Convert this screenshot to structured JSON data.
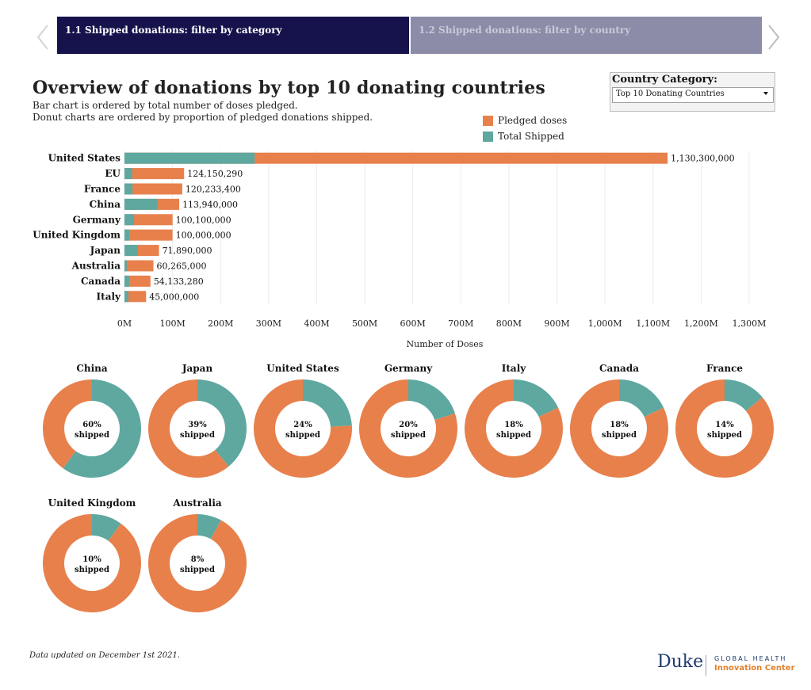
{
  "story_nav": {
    "tabs": [
      {
        "label": "1.1 Shipped donations: filter by category",
        "active": true
      },
      {
        "label": "1.2 Shipped donations: filter by country",
        "active": false
      }
    ],
    "prev_icon": "chevron-left-icon",
    "next_icon": "chevron-right-icon"
  },
  "header": {
    "title": "Overview of donations by top 10 donating countries",
    "subtitle_lines": [
      "Bar chart is ordered by total number of doses pledged.",
      "Donut charts are ordered by proportion of pledged donations shipped."
    ]
  },
  "filter": {
    "title": "Country Category:",
    "selected": "Top 10 Donating Countries"
  },
  "legend": [
    {
      "label": "Pledged doses",
      "color": "#e8804c"
    },
    {
      "label": "Total Shipped",
      "color": "#5ea8a0"
    }
  ],
  "colors": {
    "pledged": "#e8804c",
    "shipped": "#5ea8a0"
  },
  "chart_data": [
    {
      "type": "bar",
      "orientation": "horizontal",
      "stacked": "overlay",
      "categories": [
        "United States",
        "EU",
        "France",
        "China",
        "Germany",
        "United Kingdom",
        "Japan",
        "Australia",
        "Canada",
        "Italy"
      ],
      "series": [
        {
          "name": "Pledged doses",
          "values": [
            1130300000,
            124150290,
            120233400,
            113940000,
            100100000,
            100000000,
            71890000,
            60265000,
            54133280,
            45000000
          ]
        },
        {
          "name": "Total Shipped",
          "values": [
            271000000,
            16000000,
            16800000,
            68400000,
            20000000,
            10000000,
            28000000,
            4800000,
            9700000,
            8100000
          ]
        }
      ],
      "value_labels": [
        "1,130,300,000",
        "124,150,290",
        "120,233,400",
        "113,940,000",
        "100,100,000",
        "100,000,000",
        "71,890,000",
        "60,265,000",
        "54,133,280",
        "45,000,000"
      ],
      "xlabel": "Number of Doses",
      "xticks": [
        "0M",
        "100M",
        "200M",
        "300M",
        "400M",
        "500M",
        "600M",
        "700M",
        "800M",
        "900M",
        "1,000M",
        "1,100M",
        "1,200M",
        "1,300M"
      ],
      "xlim": [
        0,
        1300000000
      ],
      "grid": true
    },
    {
      "type": "pie",
      "variant": "donut",
      "items": [
        {
          "country": "China",
          "shipped_pct": 60,
          "label": "60%",
          "sub": "shipped"
        },
        {
          "country": "Japan",
          "shipped_pct": 39,
          "label": "39%",
          "sub": "shipped"
        },
        {
          "country": "United States",
          "shipped_pct": 24,
          "label": "24%",
          "sub": "shipped"
        },
        {
          "country": "Germany",
          "shipped_pct": 20,
          "label": "20%",
          "sub": "shipped"
        },
        {
          "country": "Italy",
          "shipped_pct": 18,
          "label": "18%",
          "sub": "shipped"
        },
        {
          "country": "Canada",
          "shipped_pct": 18,
          "label": "18%",
          "sub": "shipped"
        },
        {
          "country": "France",
          "shipped_pct": 14,
          "label": "14%",
          "sub": "shipped"
        },
        {
          "country": "United Kingdom",
          "shipped_pct": 10,
          "label": "10%",
          "sub": "shipped"
        },
        {
          "country": "Australia",
          "shipped_pct": 8,
          "label": "8%",
          "sub": "shipped"
        }
      ]
    }
  ],
  "footer": {
    "note": "Data updated on December 1st 2021.",
    "logo": {
      "name": "Duke",
      "line1": "GLOBAL HEALTH",
      "line2": "Innovation Center"
    }
  }
}
